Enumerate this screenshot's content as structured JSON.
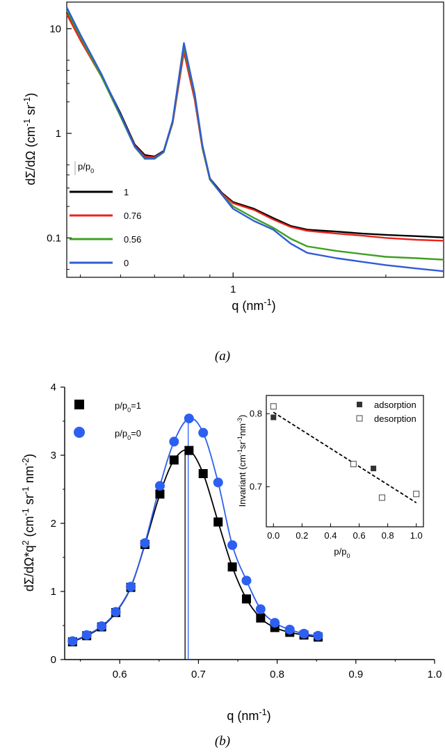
{
  "colors": {
    "black": "#000000",
    "red": "#e8231b",
    "green": "#3ea022",
    "blue": "#2f5bd6",
    "blue_marker": "#2d5ff0",
    "axis": "#000000",
    "dark_marker": "#333333"
  },
  "chart_data": [
    {
      "id": "a",
      "type": "line",
      "caption": "(a)",
      "xscale": "log",
      "yscale": "log",
      "xlim": [
        0.47,
        2.6
      ],
      "ylim": [
        0.042,
        18
      ],
      "xticks": [
        1
      ],
      "xtick_labels": [
        "1"
      ],
      "yticks": [
        0.1,
        1,
        10
      ],
      "ytick_labels": [
        "0.1",
        "1",
        "10"
      ],
      "xlabel_base": "q (nm",
      "xlabel_sup": "-1",
      "xlabel_close": ")",
      "ylabel_parts": [
        "dΣ/dΩ (cm",
        "-1",
        " sr",
        "-1",
        ")"
      ],
      "legend_title_base": "p/p",
      "legend_title_sub": "0",
      "legend_position": "left",
      "series": [
        {
          "name": "1",
          "color": "#000000",
          "q": [
            0.47,
            0.5,
            0.55,
            0.6,
            0.64,
            0.67,
            0.7,
            0.73,
            0.76,
            0.8,
            0.84,
            0.87,
            0.9,
            0.95,
            1.0,
            1.1,
            1.2,
            1.3,
            1.4,
            1.6,
            1.8,
            2.0,
            2.3,
            2.6
          ],
          "y": [
            14.5,
            8.2,
            3.6,
            1.55,
            0.78,
            0.62,
            0.6,
            0.68,
            1.3,
            6.3,
            2.2,
            0.75,
            0.37,
            0.27,
            0.22,
            0.19,
            0.155,
            0.13,
            0.12,
            0.115,
            0.11,
            0.107,
            0.104,
            0.101
          ]
        },
        {
          "name": "0.76",
          "color": "#e8231b",
          "q": [
            0.47,
            0.5,
            0.55,
            0.6,
            0.64,
            0.67,
            0.7,
            0.73,
            0.76,
            0.8,
            0.84,
            0.87,
            0.9,
            0.95,
            1.0,
            1.1,
            1.2,
            1.3,
            1.4,
            1.6,
            1.8,
            2.0,
            2.3,
            2.6
          ],
          "y": [
            13.8,
            7.8,
            3.5,
            1.5,
            0.76,
            0.6,
            0.59,
            0.67,
            1.25,
            6.0,
            2.1,
            0.72,
            0.36,
            0.265,
            0.215,
            0.185,
            0.15,
            0.127,
            0.117,
            0.11,
            0.105,
            0.1,
            0.096,
            0.094
          ]
        },
        {
          "name": "0.56",
          "color": "#3ea022",
          "q": [
            0.47,
            0.5,
            0.55,
            0.6,
            0.64,
            0.67,
            0.7,
            0.73,
            0.76,
            0.8,
            0.84,
            0.87,
            0.9,
            0.95,
            1.0,
            1.1,
            1.2,
            1.3,
            1.4,
            1.6,
            1.8,
            2.0,
            2.3,
            2.6
          ],
          "y": [
            15.0,
            8.4,
            3.5,
            1.45,
            0.74,
            0.57,
            0.57,
            0.66,
            1.28,
            6.8,
            2.3,
            0.74,
            0.36,
            0.26,
            0.2,
            0.155,
            0.125,
            0.098,
            0.083,
            0.075,
            0.07,
            0.066,
            0.064,
            0.062
          ]
        },
        {
          "name": "0",
          "color": "#2f5bd6",
          "q": [
            0.47,
            0.5,
            0.55,
            0.6,
            0.64,
            0.67,
            0.7,
            0.73,
            0.76,
            0.8,
            0.84,
            0.87,
            0.9,
            0.95,
            1.0,
            1.1,
            1.2,
            1.3,
            1.4,
            1.6,
            1.8,
            2.0,
            2.3,
            2.6
          ],
          "y": [
            16.0,
            8.8,
            3.7,
            1.5,
            0.75,
            0.58,
            0.58,
            0.67,
            1.32,
            7.3,
            2.4,
            0.77,
            0.37,
            0.26,
            0.19,
            0.145,
            0.12,
            0.088,
            0.072,
            0.064,
            0.059,
            0.055,
            0.051,
            0.048
          ]
        }
      ]
    },
    {
      "id": "b",
      "type": "scatter",
      "caption": "(b)",
      "xlim": [
        0.53,
        1.0
      ],
      "ylim": [
        0,
        4
      ],
      "xticks": [
        0.6,
        0.7,
        0.8,
        0.9,
        1.0
      ],
      "xtick_labels": [
        "0.6",
        "0.7",
        "0.8",
        "0.9",
        "1.0"
      ],
      "yticks": [
        0,
        1,
        2,
        3,
        4
      ],
      "ytick_labels": [
        "0",
        "1",
        "2",
        "3",
        "4"
      ],
      "xlabel_base": "q (nm",
      "xlabel_sup": "-1",
      "xlabel_close": ")",
      "ylabel_parts": [
        "dΣ/dΩ*q",
        "2",
        " (cm",
        "-1",
        " sr",
        "-1",
        " nm",
        "-2",
        ")"
      ],
      "legend_position": "top-left",
      "peak_lines": [
        0.683,
        0.687
      ],
      "series": [
        {
          "name": "p/p0=1",
          "label_base": "p/p",
          "label_sub": "0",
          "label_tail": "=1",
          "marker": "square",
          "color": "#000000",
          "x": [
            0.54,
            0.558,
            0.577,
            0.595,
            0.614,
            0.632,
            0.651,
            0.669,
            0.688,
            0.706,
            0.725,
            0.743,
            0.761,
            0.779,
            0.797,
            0.816,
            0.834,
            0.852
          ],
          "y": [
            0.26,
            0.35,
            0.48,
            0.69,
            1.06,
            1.69,
            2.43,
            2.93,
            3.07,
            2.73,
            2.02,
            1.36,
            0.89,
            0.61,
            0.47,
            0.4,
            0.36,
            0.33
          ]
        },
        {
          "name": "p/p0=0",
          "label_base": "p/p",
          "label_sub": "0",
          "label_tail": "=0",
          "marker": "circle",
          "color": "#2d5ff0",
          "x": [
            0.54,
            0.558,
            0.577,
            0.595,
            0.614,
            0.632,
            0.651,
            0.669,
            0.688,
            0.706,
            0.725,
            0.743,
            0.761,
            0.779,
            0.797,
            0.816,
            0.834,
            0.852
          ],
          "y": [
            0.27,
            0.36,
            0.49,
            0.7,
            1.07,
            1.71,
            2.55,
            3.2,
            3.54,
            3.33,
            2.6,
            1.68,
            1.16,
            0.74,
            0.54,
            0.44,
            0.38,
            0.35
          ]
        }
      ],
      "inset": {
        "type": "scatter",
        "xlim": [
          -0.05,
          1.05
        ],
        "ylim": [
          0.645,
          0.825
        ],
        "xticks": [
          0.0,
          0.2,
          0.4,
          0.6,
          0.8,
          1.0
        ],
        "xtick_labels": [
          "0.0",
          "0.2",
          "0.4",
          "0.6",
          "0.8",
          "1.0"
        ],
        "yticks": [
          0.7,
          0.8
        ],
        "ytick_labels": [
          "0.7",
          "0.8"
        ],
        "xlabel_base": "p/p",
        "xlabel_sub": "0",
        "ylabel_parts": [
          "Invariant  (cm",
          "-1",
          "sr",
          "-1",
          "nm",
          "-3",
          ")"
        ],
        "legend_position": "top-right",
        "series": [
          {
            "name": "adsorption",
            "marker": "filled-square",
            "x": [
              0.0,
              0.7
            ],
            "y": [
              0.795,
              0.725
            ]
          },
          {
            "name": "desorption",
            "marker": "open-square",
            "x": [
              0.0,
              0.56,
              0.76,
              1.0
            ],
            "y": [
              0.81,
              0.731,
              0.685,
              0.69
            ]
          }
        ],
        "fit_line": {
          "style": "dashed",
          "x": [
            0.0,
            1.0
          ],
          "y": [
            0.802,
            0.678
          ]
        }
      }
    }
  ]
}
